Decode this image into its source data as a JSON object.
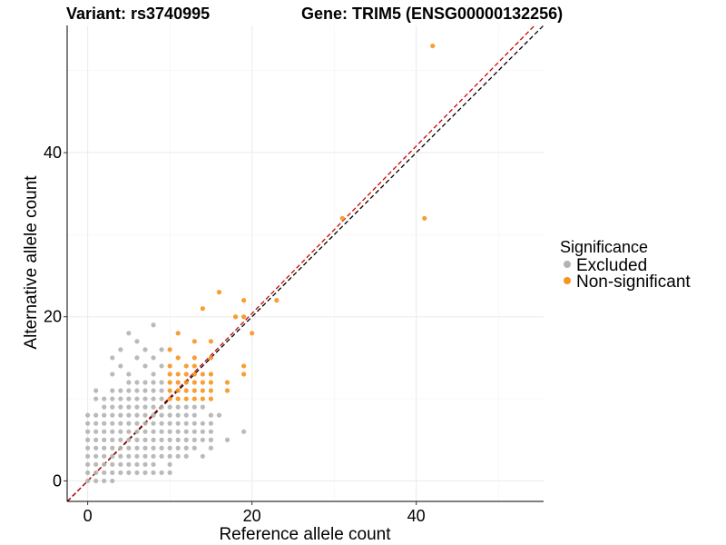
{
  "chart_data": {
    "type": "scatter",
    "title_left": "Variant: rs3740995",
    "title_right": "Gene: TRIM5 (ENSG00000132256)",
    "xlabel": "Reference allele count",
    "ylabel": "Alternative allele count",
    "xlim": [
      -2.5,
      55.5
    ],
    "ylim": [
      -2.5,
      55.5
    ],
    "x_ticks": [
      0,
      20,
      40
    ],
    "y_ticks": [
      0,
      20,
      40
    ],
    "grid": true,
    "legend": {
      "title": "Significance",
      "position": "right",
      "entries": [
        {
          "label": "Excluded",
          "color": "#b3b3b3"
        },
        {
          "label": "Non-significant",
          "color": "#f7941d"
        }
      ]
    },
    "reference_lines": [
      {
        "slope": 1,
        "intercept": 0,
        "color": "#000000",
        "style": "dashed"
      },
      {
        "slope": 1.02,
        "intercept": 0,
        "color": "#cc0000",
        "style": "dashed"
      }
    ],
    "series": [
      {
        "name": "Excluded",
        "color": "#b3b3b3",
        "points": [
          [
            0,
            0
          ],
          [
            0,
            1
          ],
          [
            0,
            2
          ],
          [
            0,
            3
          ],
          [
            0,
            4
          ],
          [
            0,
            5
          ],
          [
            0,
            6
          ],
          [
            0,
            7
          ],
          [
            0,
            8
          ],
          [
            1,
            0
          ],
          [
            1,
            1
          ],
          [
            1,
            2
          ],
          [
            1,
            3
          ],
          [
            1,
            4
          ],
          [
            1,
            5
          ],
          [
            1,
            6
          ],
          [
            1,
            7
          ],
          [
            1,
            8
          ],
          [
            1,
            10
          ],
          [
            1,
            11
          ],
          [
            2,
            0
          ],
          [
            2,
            1
          ],
          [
            2,
            2
          ],
          [
            2,
            3
          ],
          [
            2,
            4
          ],
          [
            2,
            5
          ],
          [
            2,
            6
          ],
          [
            2,
            7
          ],
          [
            2,
            8
          ],
          [
            2,
            9
          ],
          [
            2,
            10
          ],
          [
            3,
            0
          ],
          [
            3,
            1
          ],
          [
            3,
            2
          ],
          [
            3,
            3
          ],
          [
            3,
            4
          ],
          [
            3,
            5
          ],
          [
            3,
            6
          ],
          [
            3,
            7
          ],
          [
            3,
            8
          ],
          [
            3,
            9
          ],
          [
            3,
            10
          ],
          [
            3,
            11
          ],
          [
            3,
            13
          ],
          [
            3,
            15
          ],
          [
            4,
            1
          ],
          [
            4,
            2
          ],
          [
            4,
            3
          ],
          [
            4,
            4
          ],
          [
            4,
            5
          ],
          [
            4,
            6
          ],
          [
            4,
            7
          ],
          [
            4,
            8
          ],
          [
            4,
            9
          ],
          [
            4,
            10
          ],
          [
            4,
            11
          ],
          [
            4,
            14
          ],
          [
            4,
            16
          ],
          [
            5,
            1
          ],
          [
            5,
            2
          ],
          [
            5,
            3
          ],
          [
            5,
            4
          ],
          [
            5,
            5
          ],
          [
            5,
            6
          ],
          [
            5,
            7
          ],
          [
            5,
            8
          ],
          [
            5,
            9
          ],
          [
            5,
            10
          ],
          [
            5,
            11
          ],
          [
            5,
            12
          ],
          [
            5,
            13
          ],
          [
            5,
            18
          ],
          [
            6,
            1
          ],
          [
            6,
            2
          ],
          [
            6,
            3
          ],
          [
            6,
            4
          ],
          [
            6,
            5
          ],
          [
            6,
            6
          ],
          [
            6,
            7
          ],
          [
            6,
            8
          ],
          [
            6,
            9
          ],
          [
            6,
            10
          ],
          [
            6,
            11
          ],
          [
            6,
            12
          ],
          [
            6,
            15
          ],
          [
            6,
            17
          ],
          [
            7,
            1
          ],
          [
            7,
            2
          ],
          [
            7,
            3
          ],
          [
            7,
            4
          ],
          [
            7,
            5
          ],
          [
            7,
            6
          ],
          [
            7,
            7
          ],
          [
            7,
            8
          ],
          [
            7,
            9
          ],
          [
            7,
            10
          ],
          [
            7,
            11
          ],
          [
            7,
            12
          ],
          [
            7,
            14
          ],
          [
            7,
            16
          ],
          [
            8,
            1
          ],
          [
            8,
            2
          ],
          [
            8,
            3
          ],
          [
            8,
            4
          ],
          [
            8,
            5
          ],
          [
            8,
            6
          ],
          [
            8,
            7
          ],
          [
            8,
            8
          ],
          [
            8,
            9
          ],
          [
            8,
            10
          ],
          [
            8,
            11
          ],
          [
            8,
            12
          ],
          [
            8,
            13
          ],
          [
            8,
            15
          ],
          [
            8,
            19
          ],
          [
            9,
            1
          ],
          [
            9,
            3
          ],
          [
            9,
            4
          ],
          [
            9,
            5
          ],
          [
            9,
            6
          ],
          [
            9,
            7
          ],
          [
            9,
            8
          ],
          [
            9,
            9
          ],
          [
            9,
            10
          ],
          [
            9,
            11
          ],
          [
            9,
            12
          ],
          [
            9,
            14
          ],
          [
            9,
            16
          ],
          [
            10,
            1
          ],
          [
            10,
            2
          ],
          [
            10,
            3
          ],
          [
            10,
            4
          ],
          [
            10,
            5
          ],
          [
            10,
            6
          ],
          [
            10,
            7
          ],
          [
            10,
            8
          ],
          [
            10,
            9
          ],
          [
            11,
            3
          ],
          [
            11,
            4
          ],
          [
            11,
            5
          ],
          [
            11,
            6
          ],
          [
            11,
            7
          ],
          [
            11,
            8
          ],
          [
            11,
            9
          ],
          [
            12,
            3
          ],
          [
            12,
            4
          ],
          [
            12,
            5
          ],
          [
            12,
            6
          ],
          [
            12,
            7
          ],
          [
            12,
            8
          ],
          [
            12,
            9
          ],
          [
            13,
            4
          ],
          [
            13,
            5
          ],
          [
            13,
            6
          ],
          [
            13,
            7
          ],
          [
            13,
            8
          ],
          [
            13,
            9
          ],
          [
            14,
            3
          ],
          [
            14,
            5
          ],
          [
            14,
            6
          ],
          [
            14,
            7
          ],
          [
            14,
            9
          ],
          [
            15,
            4
          ],
          [
            15,
            5
          ],
          [
            15,
            6
          ],
          [
            15,
            7
          ],
          [
            15,
            8
          ],
          [
            16,
            8
          ],
          [
            17,
            5
          ],
          [
            19,
            6
          ]
        ]
      },
      {
        "name": "Non-significant",
        "color": "#f7941d",
        "points": [
          [
            10,
            10
          ],
          [
            10,
            11
          ],
          [
            10,
            12
          ],
          [
            10,
            13
          ],
          [
            10,
            14
          ],
          [
            10,
            16
          ],
          [
            11,
            10
          ],
          [
            11,
            11
          ],
          [
            11,
            12
          ],
          [
            11,
            13
          ],
          [
            11,
            15
          ],
          [
            11,
            18
          ],
          [
            12,
            10
          ],
          [
            12,
            11
          ],
          [
            12,
            12
          ],
          [
            12,
            13
          ],
          [
            12,
            14
          ],
          [
            13,
            10
          ],
          [
            13,
            11
          ],
          [
            13,
            12
          ],
          [
            13,
            13
          ],
          [
            13,
            14
          ],
          [
            13,
            15
          ],
          [
            13,
            17
          ],
          [
            14,
            10
          ],
          [
            14,
            11
          ],
          [
            14,
            12
          ],
          [
            14,
            13
          ],
          [
            14,
            21
          ],
          [
            15,
            10
          ],
          [
            15,
            11
          ],
          [
            15,
            12
          ],
          [
            15,
            13
          ],
          [
            15,
            15
          ],
          [
            15,
            17
          ],
          [
            16,
            23
          ],
          [
            17,
            11
          ],
          [
            17,
            12
          ],
          [
            18,
            20
          ],
          [
            19,
            13
          ],
          [
            19,
            14
          ],
          [
            19,
            20
          ],
          [
            19,
            22
          ],
          [
            20,
            18
          ],
          [
            23,
            22
          ],
          [
            31,
            32
          ],
          [
            41,
            32
          ],
          [
            42,
            53
          ]
        ]
      }
    ]
  }
}
